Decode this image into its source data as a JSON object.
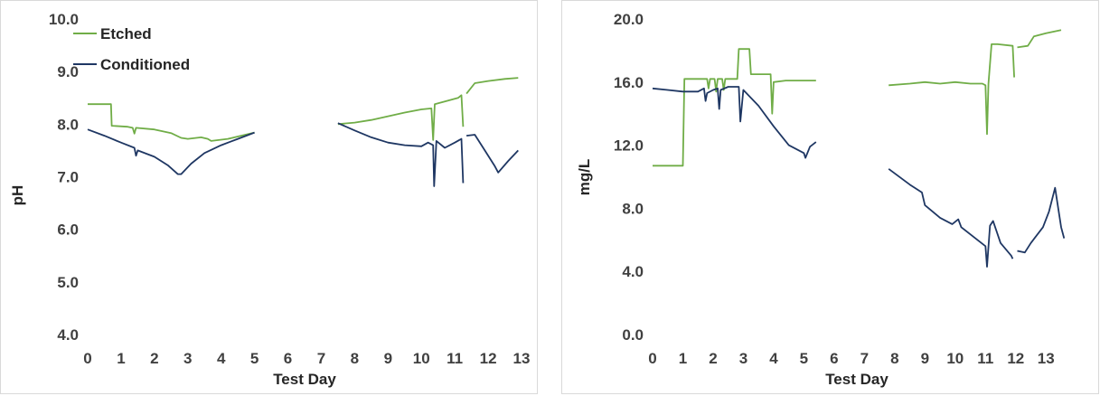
{
  "chart_data": [
    {
      "type": "line",
      "xlabel": "Test Day",
      "ylabel": "pH",
      "xlim": [
        0,
        13
      ],
      "ylim": [
        4.0,
        10.0
      ],
      "xticks": [
        "0",
        "1",
        "2",
        "3",
        "4",
        "5",
        "6",
        "7",
        "8",
        "9",
        "10",
        "11",
        "12",
        "13"
      ],
      "yticks": [
        "4.0",
        "5.0",
        "6.0",
        "7.0",
        "8.0",
        "9.0",
        "10.0"
      ],
      "legend_position": "top-left",
      "grid": false,
      "series": [
        {
          "name": "Etched",
          "color": "#70ad47",
          "segments": [
            [
              [
                0,
                8.38
              ],
              [
                0.7,
                8.38
              ],
              [
                0.72,
                7.97
              ],
              [
                1.2,
                7.95
              ],
              [
                1.35,
                7.93
              ],
              [
                1.4,
                7.82
              ],
              [
                1.45,
                7.93
              ],
              [
                2.0,
                7.9
              ],
              [
                2.5,
                7.83
              ],
              [
                2.8,
                7.74
              ],
              [
                3.0,
                7.72
              ],
              [
                3.4,
                7.75
              ],
              [
                3.6,
                7.72
              ],
              [
                3.7,
                7.68
              ],
              [
                4.2,
                7.72
              ],
              [
                4.6,
                7.78
              ],
              [
                5.0,
                7.84
              ]
            ],
            [
              [
                7.5,
                8.0
              ],
              [
                8.0,
                8.03
              ],
              [
                8.5,
                8.08
              ],
              [
                9.0,
                8.15
              ],
              [
                9.5,
                8.22
              ],
              [
                10.0,
                8.28
              ],
              [
                10.3,
                8.3
              ],
              [
                10.35,
                7.7
              ],
              [
                10.4,
                8.38
              ],
              [
                10.8,
                8.45
              ],
              [
                11.1,
                8.5
              ],
              [
                11.2,
                8.55
              ],
              [
                11.25,
                7.95
              ]
            ],
            [
              [
                11.35,
                8.58
              ],
              [
                11.6,
                8.78
              ],
              [
                12.0,
                8.82
              ],
              [
                12.5,
                8.86
              ],
              [
                12.9,
                8.88
              ]
            ]
          ]
        },
        {
          "name": "Conditioned",
          "color": "#1f3763",
          "segments": [
            [
              [
                0,
                7.9
              ],
              [
                0.5,
                7.78
              ],
              [
                1.0,
                7.65
              ],
              [
                1.4,
                7.55
              ],
              [
                1.45,
                7.4
              ],
              [
                1.5,
                7.5
              ],
              [
                2.0,
                7.38
              ],
              [
                2.4,
                7.22
              ],
              [
                2.7,
                7.05
              ],
              [
                2.8,
                7.05
              ],
              [
                3.1,
                7.25
              ],
              [
                3.5,
                7.45
              ],
              [
                4.0,
                7.6
              ],
              [
                4.5,
                7.72
              ],
              [
                5.0,
                7.84
              ]
            ],
            [
              [
                7.5,
                8.02
              ],
              [
                8.0,
                7.88
              ],
              [
                8.5,
                7.75
              ],
              [
                9.0,
                7.65
              ],
              [
                9.5,
                7.6
              ],
              [
                10.0,
                7.58
              ],
              [
                10.2,
                7.65
              ],
              [
                10.35,
                7.6
              ],
              [
                10.38,
                6.82
              ],
              [
                10.45,
                7.68
              ],
              [
                10.7,
                7.55
              ],
              [
                11.0,
                7.65
              ],
              [
                11.2,
                7.72
              ],
              [
                11.25,
                6.88
              ]
            ],
            [
              [
                11.35,
                7.78
              ],
              [
                11.6,
                7.8
              ],
              [
                11.9,
                7.5
              ],
              [
                12.2,
                7.2
              ],
              [
                12.3,
                7.08
              ],
              [
                12.6,
                7.3
              ],
              [
                12.9,
                7.5
              ]
            ]
          ]
        }
      ]
    },
    {
      "type": "line",
      "xlabel": "Test Day",
      "ylabel": "mg/L",
      "xlim": [
        0,
        13.5
      ],
      "ylim": [
        0.0,
        20.0
      ],
      "xticks": [
        "0",
        "1",
        "2",
        "3",
        "4",
        "5",
        "6",
        "7",
        "8",
        "9",
        "10",
        "11",
        "12",
        "13"
      ],
      "yticks": [
        "0.0",
        "4.0",
        "8.0",
        "12.0",
        "16.0",
        "20.0"
      ],
      "grid": false,
      "series": [
        {
          "name": "Etched",
          "color": "#70ad47",
          "segments": [
            [
              [
                0,
                10.7
              ],
              [
                1.0,
                10.7
              ],
              [
                1.05,
                16.2
              ],
              [
                1.8,
                16.2
              ],
              [
                1.85,
                15.6
              ],
              [
                1.9,
                16.2
              ],
              [
                2.05,
                16.2
              ],
              [
                2.1,
                15.4
              ],
              [
                2.15,
                16.2
              ],
              [
                2.3,
                16.2
              ],
              [
                2.35,
                15.5
              ],
              [
                2.4,
                16.2
              ],
              [
                2.8,
                16.2
              ],
              [
                2.85,
                18.1
              ],
              [
                3.2,
                18.1
              ],
              [
                3.25,
                16.5
              ],
              [
                3.9,
                16.5
              ],
              [
                3.95,
                14.0
              ],
              [
                4.0,
                16.0
              ],
              [
                4.4,
                16.1
              ],
              [
                5.4,
                16.1
              ]
            ],
            [
              [
                7.8,
                15.8
              ],
              [
                8.5,
                15.9
              ],
              [
                9.0,
                16.0
              ],
              [
                9.5,
                15.9
              ],
              [
                10.0,
                16.0
              ],
              [
                10.5,
                15.9
              ],
              [
                10.9,
                15.9
              ],
              [
                11.0,
                15.8
              ],
              [
                11.05,
                12.7
              ],
              [
                11.1,
                15.9
              ],
              [
                11.2,
                18.4
              ],
              [
                11.4,
                18.4
              ],
              [
                11.9,
                18.3
              ],
              [
                11.95,
                16.3
              ]
            ],
            [
              [
                12.05,
                18.2
              ],
              [
                12.4,
                18.3
              ],
              [
                12.6,
                18.9
              ],
              [
                13.0,
                19.1
              ],
              [
                13.5,
                19.3
              ]
            ]
          ]
        },
        {
          "name": "Conditioned",
          "color": "#1f3763",
          "segments": [
            [
              [
                0,
                15.6
              ],
              [
                0.5,
                15.5
              ],
              [
                1.0,
                15.4
              ],
              [
                1.5,
                15.4
              ],
              [
                1.7,
                15.6
              ],
              [
                1.75,
                14.8
              ],
              [
                1.8,
                15.3
              ],
              [
                2.0,
                15.5
              ],
              [
                2.15,
                15.6
              ],
              [
                2.2,
                14.3
              ],
              [
                2.25,
                15.5
              ],
              [
                2.5,
                15.7
              ],
              [
                2.85,
                15.7
              ],
              [
                2.9,
                13.5
              ],
              [
                3.0,
                15.5
              ],
              [
                3.5,
                14.5
              ],
              [
                4.0,
                13.2
              ],
              [
                4.5,
                12.0
              ],
              [
                5.0,
                11.5
              ],
              [
                5.05,
                11.2
              ],
              [
                5.2,
                11.9
              ],
              [
                5.4,
                12.2
              ]
            ],
            [
              [
                7.8,
                10.5
              ],
              [
                8.5,
                9.5
              ],
              [
                8.9,
                9.0
              ],
              [
                9.0,
                8.2
              ],
              [
                9.5,
                7.4
              ],
              [
                9.9,
                7.0
              ],
              [
                10.1,
                7.3
              ],
              [
                10.2,
                6.8
              ],
              [
                10.6,
                6.2
              ],
              [
                11.0,
                5.6
              ],
              [
                11.05,
                4.3
              ],
              [
                11.15,
                6.9
              ],
              [
                11.25,
                7.2
              ],
              [
                11.5,
                5.8
              ],
              [
                11.85,
                5.0
              ],
              [
                11.9,
                4.8
              ]
            ],
            [
              [
                12.05,
                5.3
              ],
              [
                12.3,
                5.2
              ],
              [
                12.5,
                5.8
              ],
              [
                12.9,
                6.8
              ],
              [
                13.1,
                7.8
              ],
              [
                13.3,
                9.3
              ],
              [
                13.5,
                6.8
              ],
              [
                13.6,
                6.1
              ]
            ]
          ]
        }
      ]
    }
  ]
}
